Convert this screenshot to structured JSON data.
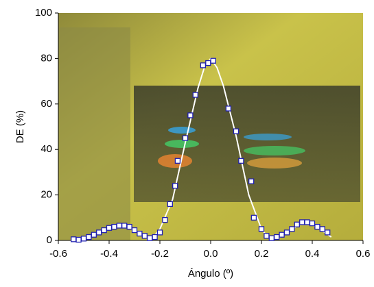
{
  "chart_data": {
    "type": "scatter",
    "x_label": "Ángulo (º)",
    "y_label": "DE (%)",
    "xlim": [
      -0.6,
      0.6
    ],
    "ylim": [
      0,
      100
    ],
    "xticks": [
      -0.6,
      -0.4,
      -0.2,
      {
        "value": 0,
        "label": "0.0"
      },
      0.2,
      0.4,
      0.6
    ],
    "yticks": [
      0,
      20,
      40,
      60,
      80,
      100
    ],
    "series": [
      {
        "kind": "markers",
        "color": "#1f1fb0",
        "x": [
          -0.54,
          -0.52,
          -0.5,
          -0.48,
          -0.46,
          -0.44,
          -0.42,
          -0.4,
          -0.38,
          -0.36,
          -0.34,
          -0.32,
          -0.3,
          -0.28,
          -0.26,
          -0.24,
          -0.22,
          -0.2,
          -0.18,
          -0.16,
          -0.14,
          -0.13,
          -0.1,
          -0.08,
          -0.06,
          -0.03,
          -0.01,
          0.01,
          0.07,
          0.1,
          0.12,
          0.16,
          0.17,
          0.2,
          0.22,
          0.24,
          0.26,
          0.28,
          0.3,
          0.32,
          0.34,
          0.36,
          0.38,
          0.4,
          0.42,
          0.44,
          0.46
        ],
        "values": [
          0.5,
          0.3,
          0.8,
          1.5,
          2.5,
          3.5,
          4.5,
          5.5,
          6,
          6.5,
          6.5,
          6,
          4.5,
          3,
          2,
          1,
          1.5,
          3.5,
          9,
          16,
          24,
          35,
          45,
          55,
          64,
          77,
          78,
          79,
          58,
          48,
          35,
          26,
          10,
          5,
          2,
          1,
          1.5,
          2.5,
          3.5,
          5,
          7,
          8,
          8,
          7.5,
          6,
          5,
          3.5
        ]
      },
      {
        "kind": "line",
        "color": "#ffffff",
        "x": [
          -0.53,
          -0.5,
          -0.45,
          -0.4,
          -0.35,
          -0.3,
          -0.275,
          -0.25,
          -0.225,
          -0.2,
          -0.15,
          -0.1,
          -0.05,
          -0.025,
          0,
          0.025,
          0.05,
          0.1,
          0.15,
          0.2,
          0.225,
          0.25,
          0.275,
          0.3,
          0.35,
          0.4,
          0.45,
          0.475
        ],
        "values": [
          0,
          0.5,
          3,
          6,
          6.8,
          4.5,
          2.5,
          1,
          1.5,
          5,
          18,
          43,
          67,
          76,
          80,
          76,
          68,
          46,
          20,
          5,
          1.5,
          0.5,
          1.5,
          3.5,
          7,
          7,
          3.5,
          1.5
        ]
      }
    ]
  }
}
